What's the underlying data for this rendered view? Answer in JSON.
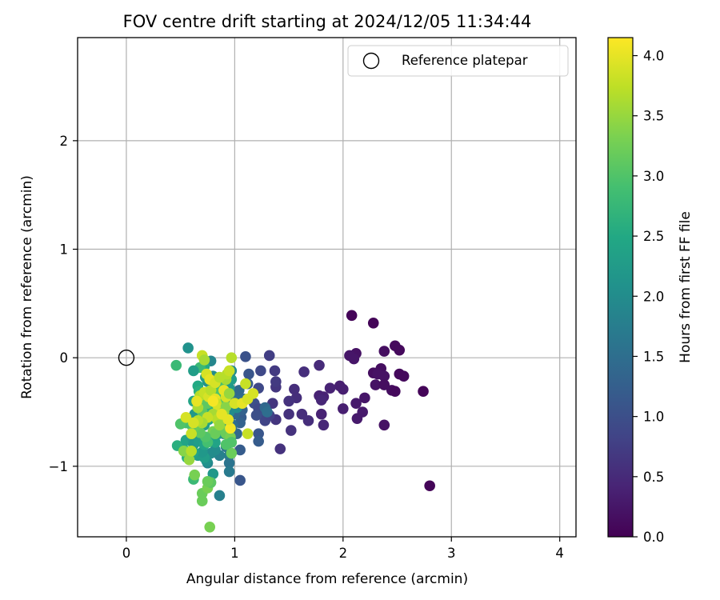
{
  "chart_data": {
    "type": "scatter",
    "title": "FOV centre drift starting at 2024/12/05 11:34:44",
    "xlabel": "Angular distance from reference (arcmin)",
    "ylabel": "Rotation from reference (arcmin)",
    "xlim": [
      -0.45,
      4.15
    ],
    "ylim": [
      -1.65,
      2.95
    ],
    "xticks": [
      "0",
      "1",
      "2",
      "3",
      "4"
    ],
    "yticks": [
      "−1",
      "0",
      "1",
      "2"
    ],
    "grid": true,
    "legend": {
      "position": "top-right",
      "entries": [
        "Reference platepar"
      ]
    },
    "reference_point": {
      "x": 0,
      "y": 0
    },
    "colorbar": {
      "label": "Hours from first FF file",
      "colormap": "viridis",
      "range": [
        0.0,
        4.15
      ],
      "ticks": [
        "0.0",
        "0.5",
        "1.0",
        "1.5",
        "2.0",
        "2.5",
        "3.0",
        "3.5",
        "4.0"
      ]
    },
    "points": [
      {
        "x": 2.08,
        "y": 0.39,
        "c": 0.05
      },
      {
        "x": 2.28,
        "y": 0.32,
        "c": 0.05
      },
      {
        "x": 2.8,
        "y": -1.18,
        "c": 0.05
      },
      {
        "x": 2.74,
        "y": -0.31,
        "c": 0.05
      },
      {
        "x": 2.48,
        "y": 0.11,
        "c": 0.1
      },
      {
        "x": 2.52,
        "y": 0.07,
        "c": 0.1
      },
      {
        "x": 2.38,
        "y": 0.06,
        "c": 0.15
      },
      {
        "x": 2.12,
        "y": 0.04,
        "c": 0.2
      },
      {
        "x": 2.06,
        "y": 0.02,
        "c": 0.25
      },
      {
        "x": 2.1,
        "y": -0.01,
        "c": 0.25
      },
      {
        "x": 2.28,
        "y": -0.14,
        "c": 0.15
      },
      {
        "x": 2.35,
        "y": -0.1,
        "c": 0.15
      },
      {
        "x": 2.52,
        "y": -0.15,
        "c": 0.1
      },
      {
        "x": 2.56,
        "y": -0.17,
        "c": 0.1
      },
      {
        "x": 2.32,
        "y": -0.15,
        "c": 0.2
      },
      {
        "x": 2.38,
        "y": -0.17,
        "c": 0.2
      },
      {
        "x": 2.3,
        "y": -0.25,
        "c": 0.2
      },
      {
        "x": 2.38,
        "y": -0.25,
        "c": 0.15
      },
      {
        "x": 2.45,
        "y": -0.3,
        "c": 0.15
      },
      {
        "x": 2.48,
        "y": -0.31,
        "c": 0.1
      },
      {
        "x": 2.2,
        "y": -0.37,
        "c": 0.25
      },
      {
        "x": 2.12,
        "y": -0.42,
        "c": 0.3
      },
      {
        "x": 2.18,
        "y": -0.5,
        "c": 0.3
      },
      {
        "x": 2.13,
        "y": -0.56,
        "c": 0.3
      },
      {
        "x": 2.38,
        "y": -0.62,
        "c": 0.2
      },
      {
        "x": 2.0,
        "y": -0.47,
        "c": 0.35
      },
      {
        "x": 2.0,
        "y": -0.29,
        "c": 0.35
      },
      {
        "x": 1.97,
        "y": -0.26,
        "c": 0.35
      },
      {
        "x": 1.88,
        "y": -0.28,
        "c": 0.4
      },
      {
        "x": 1.82,
        "y": -0.36,
        "c": 0.4
      },
      {
        "x": 1.78,
        "y": -0.35,
        "c": 0.4
      },
      {
        "x": 1.8,
        "y": -0.39,
        "c": 0.45
      },
      {
        "x": 1.8,
        "y": -0.52,
        "c": 0.4
      },
      {
        "x": 1.82,
        "y": -0.62,
        "c": 0.45
      },
      {
        "x": 1.78,
        "y": -0.07,
        "c": 0.5
      },
      {
        "x": 1.64,
        "y": -0.13,
        "c": 0.55
      },
      {
        "x": 1.55,
        "y": -0.29,
        "c": 0.55
      },
      {
        "x": 1.57,
        "y": -0.37,
        "c": 0.55
      },
      {
        "x": 1.5,
        "y": -0.4,
        "c": 0.6
      },
      {
        "x": 1.5,
        "y": -0.52,
        "c": 0.6
      },
      {
        "x": 1.62,
        "y": -0.52,
        "c": 0.55
      },
      {
        "x": 1.68,
        "y": -0.58,
        "c": 0.55
      },
      {
        "x": 1.52,
        "y": -0.67,
        "c": 0.6
      },
      {
        "x": 1.42,
        "y": -0.84,
        "c": 0.6
      },
      {
        "x": 1.38,
        "y": -0.57,
        "c": 0.65
      },
      {
        "x": 1.35,
        "y": -0.42,
        "c": 0.65
      },
      {
        "x": 1.38,
        "y": -0.27,
        "c": 0.65
      },
      {
        "x": 1.38,
        "y": -0.22,
        "c": 0.7
      },
      {
        "x": 1.37,
        "y": -0.12,
        "c": 0.7
      },
      {
        "x": 1.32,
        "y": 0.02,
        "c": 0.75
      },
      {
        "x": 1.1,
        "y": 0.01,
        "c": 1.05
      },
      {
        "x": 1.24,
        "y": -0.12,
        "c": 0.9
      },
      {
        "x": 1.13,
        "y": -0.15,
        "c": 1.1
      },
      {
        "x": 1.22,
        "y": -0.28,
        "c": 0.9
      },
      {
        "x": 1.18,
        "y": -0.42,
        "c": 1.0
      },
      {
        "x": 1.22,
        "y": -0.47,
        "c": 0.9
      },
      {
        "x": 1.25,
        "y": -0.52,
        "c": 0.9
      },
      {
        "x": 1.28,
        "y": -0.58,
        "c": 0.85
      },
      {
        "x": 1.32,
        "y": -0.53,
        "c": 0.8
      },
      {
        "x": 1.2,
        "y": -0.53,
        "c": 1.0
      },
      {
        "x": 1.28,
        "y": -0.46,
        "c": 1.4
      },
      {
        "x": 1.3,
        "y": -0.5,
        "c": 1.5
      },
      {
        "x": 1.22,
        "y": -0.7,
        "c": 1.1
      },
      {
        "x": 1.22,
        "y": -0.77,
        "c": 1.2
      },
      {
        "x": 1.05,
        "y": -0.85,
        "c": 1.2
      },
      {
        "x": 1.05,
        "y": -1.13,
        "c": 1.1
      },
      {
        "x": 1.06,
        "y": -0.55,
        "c": 1.2
      },
      {
        "x": 1.05,
        "y": -0.6,
        "c": 1.3
      },
      {
        "x": 1.07,
        "y": -0.48,
        "c": 1.3
      },
      {
        "x": 1.0,
        "y": -0.52,
        "c": 1.4
      },
      {
        "x": 0.97,
        "y": -0.4,
        "c": 1.5
      },
      {
        "x": 1.02,
        "y": -0.35,
        "c": 1.5
      },
      {
        "x": 1.08,
        "y": -0.38,
        "c": 1.5
      },
      {
        "x": 1.04,
        "y": -0.3,
        "c": 1.4
      },
      {
        "x": 1.12,
        "y": -0.24,
        "c": 1.2
      },
      {
        "x": 1.02,
        "y": -0.7,
        "c": 1.4
      },
      {
        "x": 0.98,
        "y": -0.62,
        "c": 1.5
      },
      {
        "x": 0.93,
        "y": -0.55,
        "c": 1.6
      },
      {
        "x": 0.9,
        "y": -0.7,
        "c": 1.6
      },
      {
        "x": 0.92,
        "y": -0.82,
        "c": 1.6
      },
      {
        "x": 0.95,
        "y": -0.9,
        "c": 1.7
      },
      {
        "x": 0.95,
        "y": -0.97,
        "c": 1.6
      },
      {
        "x": 0.95,
        "y": -1.05,
        "c": 1.7
      },
      {
        "x": 0.86,
        "y": -0.9,
        "c": 1.8
      },
      {
        "x": 0.86,
        "y": -1.27,
        "c": 1.8
      },
      {
        "x": 0.75,
        "y": -0.97,
        "c": 1.9
      },
      {
        "x": 0.78,
        "y": -0.88,
        "c": 2.0
      },
      {
        "x": 0.82,
        "y": -0.85,
        "c": 2.0
      },
      {
        "x": 0.8,
        "y": -1.07,
        "c": 2.2
      },
      {
        "x": 0.74,
        "y": -0.95,
        "c": 2.1
      },
      {
        "x": 0.72,
        "y": -0.92,
        "c": 2.3
      },
      {
        "x": 0.66,
        "y": -0.9,
        "c": 2.3
      },
      {
        "x": 0.7,
        "y": -0.87,
        "c": 2.2
      },
      {
        "x": 0.62,
        "y": -0.87,
        "c": 2.4
      },
      {
        "x": 0.56,
        "y": -0.92,
        "c": 2.6
      },
      {
        "x": 0.52,
        "y": -0.83,
        "c": 2.5
      },
      {
        "x": 0.47,
        "y": -0.81,
        "c": 2.6
      },
      {
        "x": 0.55,
        "y": -0.76,
        "c": 2.4
      },
      {
        "x": 0.6,
        "y": -0.73,
        "c": 2.3
      },
      {
        "x": 0.62,
        "y": -0.8,
        "c": 2.2
      },
      {
        "x": 0.67,
        "y": -0.77,
        "c": 2.3
      },
      {
        "x": 0.72,
        "y": -0.8,
        "c": 2.4
      },
      {
        "x": 0.78,
        "y": -0.75,
        "c": 2.5
      },
      {
        "x": 0.82,
        "y": -0.78,
        "c": 2.4
      },
      {
        "x": 0.85,
        "y": -0.7,
        "c": 2.2
      },
      {
        "x": 0.88,
        "y": -0.65,
        "c": 2.3
      },
      {
        "x": 0.92,
        "y": -0.62,
        "c": 2.1
      },
      {
        "x": 0.92,
        "y": -0.45,
        "c": 2.2
      },
      {
        "x": 0.95,
        "y": -0.5,
        "c": 2.0
      },
      {
        "x": 0.96,
        "y": -0.43,
        "c": 1.9
      },
      {
        "x": 1.02,
        "y": -0.46,
        "c": 2.0
      },
      {
        "x": 0.95,
        "y": -0.28,
        "c": 2.2
      },
      {
        "x": 0.97,
        "y": -0.2,
        "c": 2.3
      },
      {
        "x": 0.97,
        "y": -0.12,
        "c": 2.0
      },
      {
        "x": 0.78,
        "y": -0.03,
        "c": 1.9
      },
      {
        "x": 0.8,
        "y": -0.17,
        "c": 2.0
      },
      {
        "x": 0.75,
        "y": -0.22,
        "c": 2.1
      },
      {
        "x": 0.73,
        "y": -0.18,
        "c": 2.3
      },
      {
        "x": 0.72,
        "y": -0.08,
        "c": 2.5
      },
      {
        "x": 0.68,
        "y": -0.09,
        "c": 2.8
      },
      {
        "x": 0.62,
        "y": -0.12,
        "c": 2.3
      },
      {
        "x": 0.57,
        "y": 0.09,
        "c": 2.1
      },
      {
        "x": 0.46,
        "y": -0.07,
        "c": 2.8
      },
      {
        "x": 0.66,
        "y": -0.26,
        "c": 2.5
      },
      {
        "x": 0.67,
        "y": -0.31,
        "c": 2.6
      },
      {
        "x": 0.62,
        "y": -0.4,
        "c": 2.4
      },
      {
        "x": 0.63,
        "y": -0.52,
        "c": 2.2
      },
      {
        "x": 0.67,
        "y": -0.57,
        "c": 2.1
      },
      {
        "x": 0.72,
        "y": -0.62,
        "c": 2.3
      },
      {
        "x": 0.76,
        "y": -0.57,
        "c": 2.4
      },
      {
        "x": 0.78,
        "y": -0.48,
        "c": 2.6
      },
      {
        "x": 0.81,
        "y": -0.43,
        "c": 2.7
      },
      {
        "x": 0.85,
        "y": -0.36,
        "c": 2.8
      },
      {
        "x": 0.85,
        "y": -0.3,
        "c": 3.0
      },
      {
        "x": 0.88,
        "y": -0.25,
        "c": 2.9
      },
      {
        "x": 0.89,
        "y": -0.4,
        "c": 3.0
      },
      {
        "x": 0.7,
        "y": -0.38,
        "c": 3.0
      },
      {
        "x": 0.75,
        "y": -0.42,
        "c": 3.1
      },
      {
        "x": 0.7,
        "y": -0.5,
        "c": 3.1
      },
      {
        "x": 0.73,
        "y": -0.55,
        "c": 3.2
      },
      {
        "x": 0.85,
        "y": -0.58,
        "c": 3.1
      },
      {
        "x": 0.87,
        "y": -0.65,
        "c": 3.2
      },
      {
        "x": 0.8,
        "y": -0.68,
        "c": 3.3
      },
      {
        "x": 0.82,
        "y": -0.7,
        "c": 3.2
      },
      {
        "x": 0.92,
        "y": -0.7,
        "c": 3.2
      },
      {
        "x": 0.96,
        "y": -0.73,
        "c": 3.3
      },
      {
        "x": 0.97,
        "y": -0.78,
        "c": 3.0
      },
      {
        "x": 0.97,
        "y": -0.88,
        "c": 3.2
      },
      {
        "x": 0.92,
        "y": -0.8,
        "c": 3.0
      },
      {
        "x": 0.75,
        "y": -0.78,
        "c": 2.9
      },
      {
        "x": 0.73,
        "y": -0.73,
        "c": 3.0
      },
      {
        "x": 0.68,
        "y": -0.69,
        "c": 3.1
      },
      {
        "x": 0.65,
        "y": -0.62,
        "c": 3.2
      },
      {
        "x": 0.6,
        "y": -0.62,
        "c": 3.0
      },
      {
        "x": 0.55,
        "y": -0.6,
        "c": 2.9
      },
      {
        "x": 0.5,
        "y": -0.61,
        "c": 3.0
      },
      {
        "x": 0.53,
        "y": -0.86,
        "c": 3.4
      },
      {
        "x": 0.58,
        "y": -0.94,
        "c": 3.5
      },
      {
        "x": 0.62,
        "y": -1.12,
        "c": 2.8
      },
      {
        "x": 0.63,
        "y": -1.08,
        "c": 3.3
      },
      {
        "x": 0.7,
        "y": -1.25,
        "c": 3.2
      },
      {
        "x": 0.7,
        "y": -1.32,
        "c": 3.2
      },
      {
        "x": 0.75,
        "y": -1.2,
        "c": 3.3
      },
      {
        "x": 0.78,
        "y": -1.15,
        "c": 3.1
      },
      {
        "x": 0.75,
        "y": -1.14,
        "c": 3.2
      },
      {
        "x": 0.77,
        "y": -1.56,
        "c": 3.3
      },
      {
        "x": 0.66,
        "y": -0.46,
        "c": 3.6
      },
      {
        "x": 0.68,
        "y": -0.35,
        "c": 3.7
      },
      {
        "x": 0.72,
        "y": -0.32,
        "c": 3.8
      },
      {
        "x": 0.76,
        "y": -0.36,
        "c": 3.9
      },
      {
        "x": 0.78,
        "y": -0.3,
        "c": 3.7
      },
      {
        "x": 0.82,
        "y": -0.38,
        "c": 4.0
      },
      {
        "x": 0.83,
        "y": -0.42,
        "c": 3.8
      },
      {
        "x": 0.85,
        "y": -0.47,
        "c": 3.9
      },
      {
        "x": 0.8,
        "y": -0.52,
        "c": 3.6
      },
      {
        "x": 0.84,
        "y": -0.57,
        "c": 3.7
      },
      {
        "x": 0.86,
        "y": -0.62,
        "c": 3.5
      },
      {
        "x": 0.75,
        "y": -0.55,
        "c": 3.8
      },
      {
        "x": 0.7,
        "y": -0.6,
        "c": 3.6
      },
      {
        "x": 0.66,
        "y": -0.58,
        "c": 3.7
      },
      {
        "x": 0.62,
        "y": -0.6,
        "c": 3.9
      },
      {
        "x": 0.6,
        "y": -0.7,
        "c": 3.8
      },
      {
        "x": 0.9,
        "y": -0.5,
        "c": 3.5
      },
      {
        "x": 0.92,
        "y": -0.45,
        "c": 3.4
      },
      {
        "x": 0.92,
        "y": -0.36,
        "c": 3.9
      },
      {
        "x": 0.9,
        "y": -0.3,
        "c": 4.0
      },
      {
        "x": 0.92,
        "y": -0.2,
        "c": 3.6
      },
      {
        "x": 0.93,
        "y": -0.15,
        "c": 3.7
      },
      {
        "x": 0.95,
        "y": -0.12,
        "c": 3.8
      },
      {
        "x": 0.97,
        "y": 0.0,
        "c": 3.7
      },
      {
        "x": 0.7,
        "y": 0.02,
        "c": 3.8
      },
      {
        "x": 0.72,
        "y": -0.02,
        "c": 3.6
      },
      {
        "x": 0.74,
        "y": -0.15,
        "c": 3.9
      },
      {
        "x": 0.77,
        "y": -0.2,
        "c": 4.0
      },
      {
        "x": 0.82,
        "y": -0.23,
        "c": 3.9
      },
      {
        "x": 0.86,
        "y": -0.18,
        "c": 3.7
      },
      {
        "x": 0.96,
        "y": -0.65,
        "c": 4.1
      },
      {
        "x": 0.94,
        "y": -0.57,
        "c": 4.0
      },
      {
        "x": 0.88,
        "y": -0.52,
        "c": 4.0
      },
      {
        "x": 1.0,
        "y": -0.42,
        "c": 3.9
      },
      {
        "x": 1.07,
        "y": -0.42,
        "c": 4.0
      },
      {
        "x": 1.12,
        "y": -0.38,
        "c": 3.9
      },
      {
        "x": 1.17,
        "y": -0.33,
        "c": 3.9
      },
      {
        "x": 1.1,
        "y": -0.24,
        "c": 3.8
      },
      {
        "x": 1.12,
        "y": -0.7,
        "c": 3.8
      },
      {
        "x": 0.6,
        "y": -0.86,
        "c": 3.7
      },
      {
        "x": 0.55,
        "y": -0.55,
        "c": 3.9
      },
      {
        "x": 0.65,
        "y": -0.4,
        "c": 4.0
      },
      {
        "x": 0.8,
        "y": -0.4,
        "c": 4.1
      },
      {
        "x": 0.95,
        "y": -0.33,
        "c": 3.5
      }
    ]
  }
}
